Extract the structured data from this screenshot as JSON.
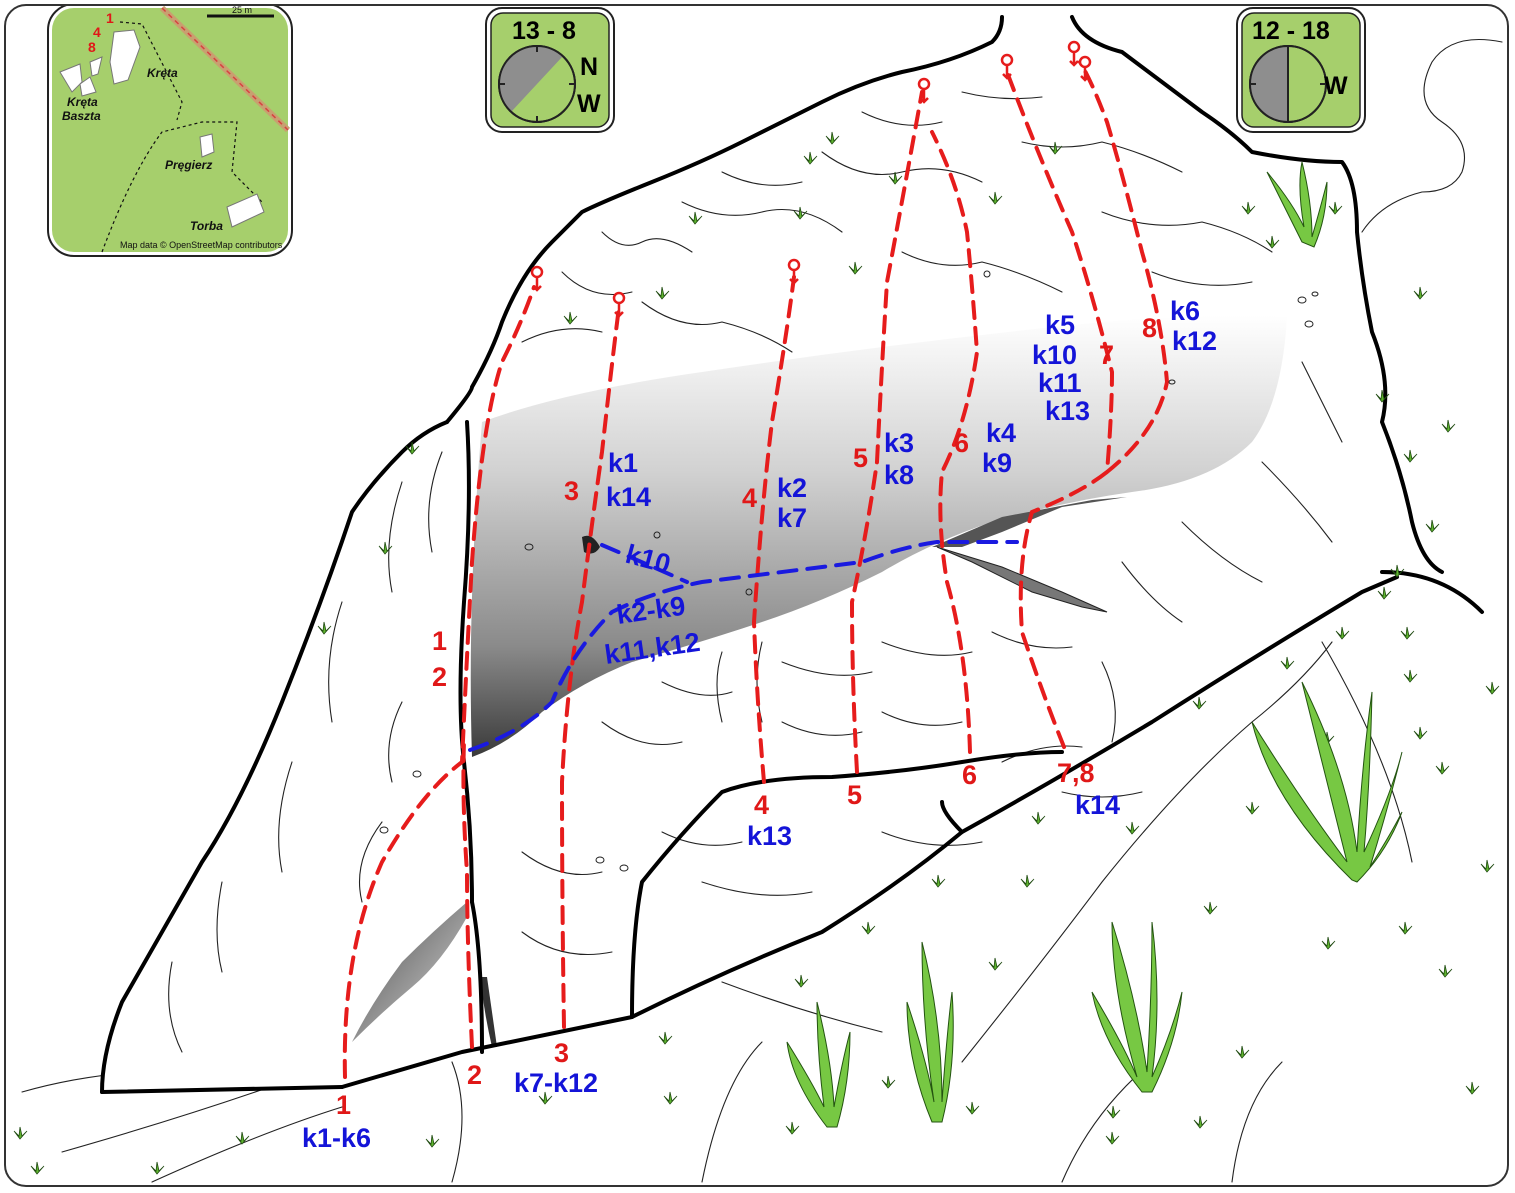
{
  "inset_map": {
    "scale_label": "25 m",
    "route_numbers": [
      "1",
      "4",
      "8"
    ],
    "places": [
      "Kręta",
      "Kręta\nBaszta",
      "Pręgierz",
      "Torba"
    ],
    "place_kreta": "Kręta",
    "place_kreta_baszta_1": "Kręta",
    "place_kreta_baszta_2": "Baszta",
    "place_pregierz": "Pręgierz",
    "place_torba": "Torba",
    "attribution": "Map data © OpenStreetMap contributors",
    "background_color": "#a6cf6c"
  },
  "badge_left": {
    "hours": "13 - 8",
    "dir1": "N",
    "dir2": "W",
    "color": "#a6cf6c"
  },
  "badge_right": {
    "hours": "12 - 18",
    "dir1": "W",
    "color": "#a6cf6c"
  },
  "routes": [
    {
      "id": "r1",
      "start": "1",
      "mid": "1\n2",
      "color": "#e61c1c"
    },
    {
      "id": "r2",
      "start": "2"
    },
    {
      "id": "r3",
      "start": "3",
      "mid": "3"
    },
    {
      "id": "r4",
      "start": "4",
      "mid": "4"
    },
    {
      "id": "r5",
      "start": "5",
      "mid": "5"
    },
    {
      "id": "r6",
      "start": "6",
      "mid": "6"
    },
    {
      "id": "r7",
      "start": "7,8",
      "mid": "7"
    },
    {
      "id": "r8",
      "mid": "8"
    }
  ],
  "labels": {
    "red_1_bottom": "1",
    "red_2_bottom": "2",
    "red_3_bottom": "3",
    "red_4_bottom": "4",
    "red_5_bottom": "5",
    "red_6_bottom": "6",
    "red_78_bottom": "7,8",
    "red_1_mid": "1",
    "red_2_mid": "2",
    "red_3_mid": "3",
    "red_4_mid": "4",
    "red_5_mid": "5",
    "red_6_mid": "6",
    "red_7_mid": "7",
    "red_8_mid": "8",
    "blue_k1_k6": "k1-k6",
    "blue_k7_k12": "k7-k12",
    "blue_k13": "k13",
    "blue_k14": "k14",
    "blue_k1": "k1",
    "blue_k14_mid": "k14",
    "blue_k2": "k2",
    "blue_k7": "k7",
    "blue_k3": "k3",
    "blue_k8": "k8",
    "blue_k4": "k4",
    "blue_k9": "k9",
    "blue_k5": "k5",
    "blue_k10": "k10",
    "blue_k11": "k11",
    "blue_k13_mid": "k13",
    "blue_k6": "k6",
    "blue_k12": "k12",
    "blue_k10_traverse": "k10",
    "blue_k2k9": "k2-k9",
    "blue_k11k12": "k11,k12"
  },
  "colors": {
    "route_red": "#e61c1c",
    "traverse_blue": "#1a1ae0",
    "grass_green": "#6cc23a",
    "label_red": "#e01818",
    "label_blue": "#1414d8"
  }
}
